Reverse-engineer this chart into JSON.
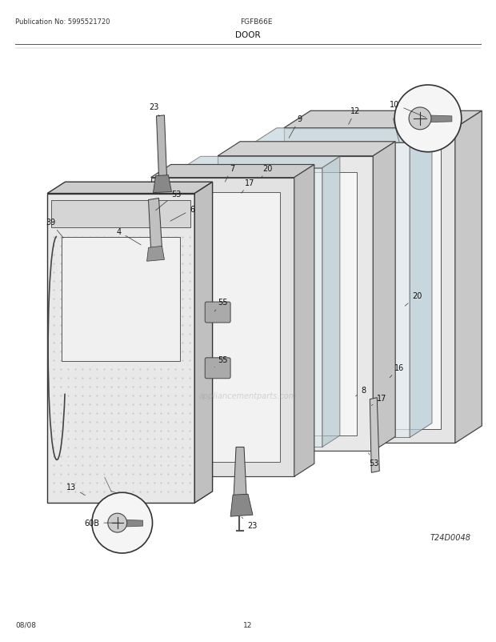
{
  "title_center": "DOOR",
  "pub_no": "Publication No: 5995521720",
  "model": "FGFB66E",
  "date_code": "08/08",
  "page_no": "12",
  "diagram_id": "T24D0048",
  "bg_color": "#ffffff",
  "fig_width": 6.2,
  "fig_height": 8.03,
  "dpi": 100
}
